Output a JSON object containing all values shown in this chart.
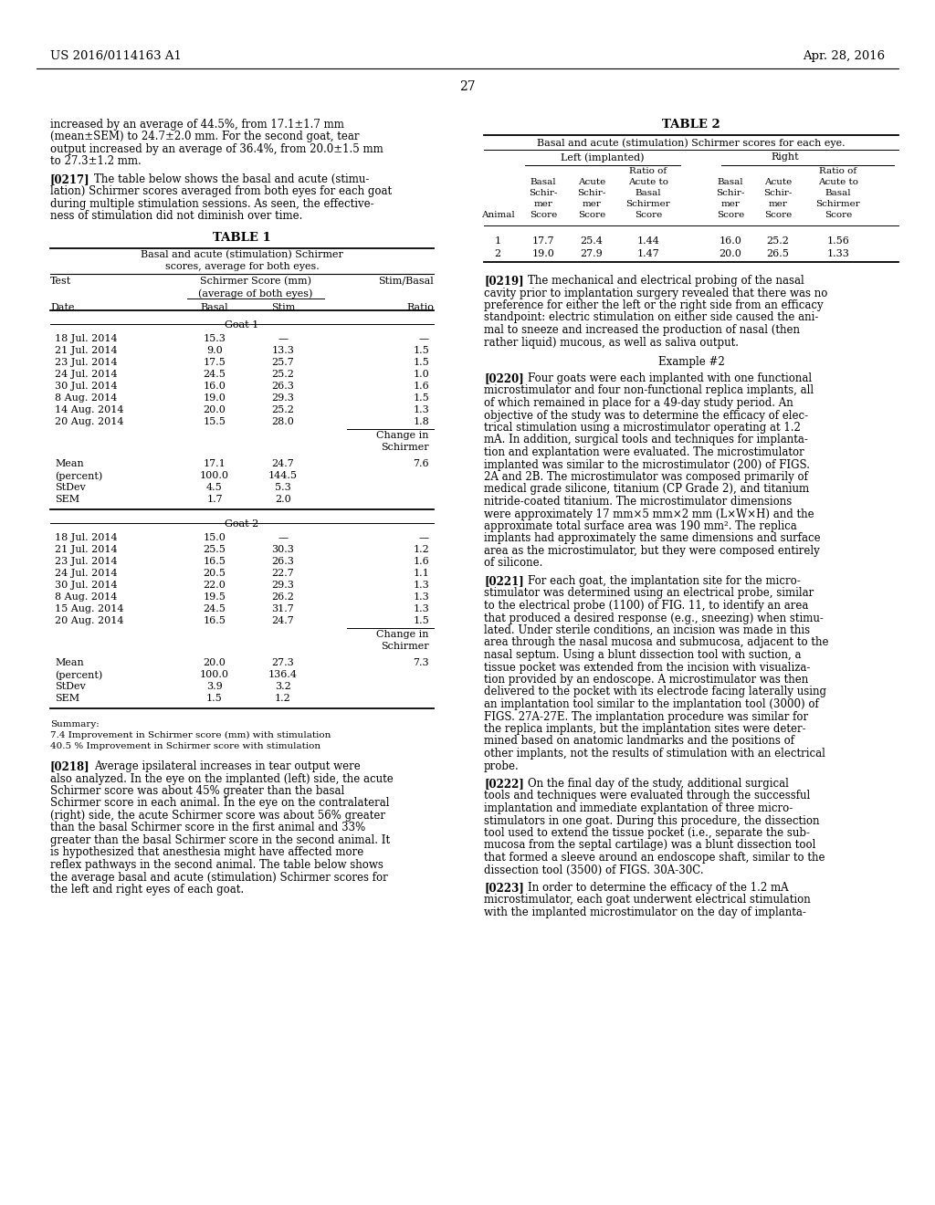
{
  "page_number": "27",
  "header_left": "US 2016/0114163 A1",
  "header_right": "Apr. 28, 2016",
  "goat1_rows": [
    [
      "18 Jul. 2014",
      "15.3",
      "—",
      "—"
    ],
    [
      "21 Jul. 2014",
      "9.0",
      "13.3",
      "1.5"
    ],
    [
      "23 Jul. 2014",
      "17.5",
      "25.7",
      "1.5"
    ],
    [
      "24 Jul. 2014",
      "24.5",
      "25.2",
      "1.0"
    ],
    [
      "30 Jul. 2014",
      "16.0",
      "26.3",
      "1.6"
    ],
    [
      "8 Aug. 2014",
      "19.0",
      "29.3",
      "1.5"
    ],
    [
      "14 Aug. 2014",
      "20.0",
      "25.2",
      "1.3"
    ],
    [
      "20 Aug. 2014",
      "15.5",
      "28.0",
      "1.8"
    ]
  ],
  "goat1_stats": [
    [
      "Mean",
      "17.1",
      "24.7",
      "7.6"
    ],
    [
      "(percent)",
      "100.0",
      "144.5",
      ""
    ],
    [
      "StDev",
      "4.5",
      "5.3",
      ""
    ],
    [
      "SEM",
      "1.7",
      "2.0",
      ""
    ]
  ],
  "goat2_rows": [
    [
      "18 Jul. 2014",
      "15.0",
      "—",
      "—"
    ],
    [
      "21 Jul. 2014",
      "25.5",
      "30.3",
      "1.2"
    ],
    [
      "23 Jul. 2014",
      "16.5",
      "26.3",
      "1.6"
    ],
    [
      "24 Jul. 2014",
      "20.5",
      "22.7",
      "1.1"
    ],
    [
      "30 Jul. 2014",
      "22.0",
      "29.3",
      "1.3"
    ],
    [
      "8 Aug. 2014",
      "19.5",
      "26.2",
      "1.3"
    ],
    [
      "15 Aug. 2014",
      "24.5",
      "31.7",
      "1.3"
    ],
    [
      "20 Aug. 2014",
      "16.5",
      "24.7",
      "1.5"
    ]
  ],
  "goat2_stats": [
    [
      "Mean",
      "20.0",
      "27.3",
      "7.3"
    ],
    [
      "(percent)",
      "100.0",
      "136.4",
      ""
    ],
    [
      "StDev",
      "3.9",
      "3.2",
      ""
    ],
    [
      "SEM",
      "1.5",
      "1.2",
      ""
    ]
  ],
  "summary_lines": [
    "7.4 Improvement in Schirmer score (mm) with stimulation",
    "40.5 % Improvement in Schirmer score with stimulation"
  ],
  "t2_rows": [
    [
      "1",
      "17.7",
      "25.4",
      "1.44",
      "16.0",
      "25.2",
      "1.56"
    ],
    [
      "2",
      "19.0",
      "27.9",
      "1.47",
      "20.0",
      "26.5",
      "1.33"
    ]
  ]
}
